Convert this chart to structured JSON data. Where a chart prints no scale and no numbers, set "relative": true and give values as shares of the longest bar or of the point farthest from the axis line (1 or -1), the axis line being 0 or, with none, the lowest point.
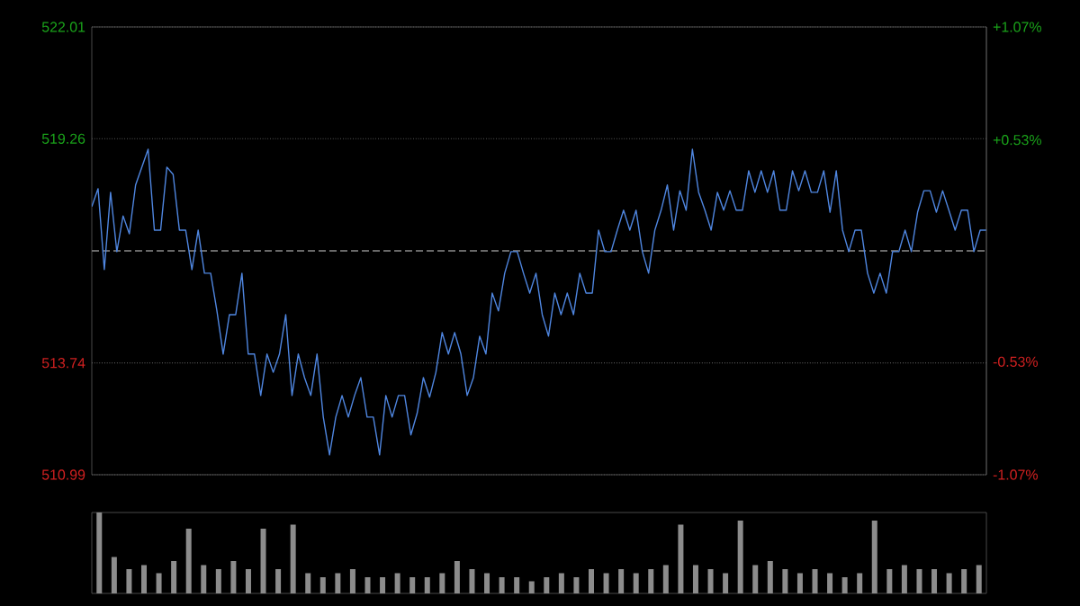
{
  "chart_data": [
    {
      "type": "line",
      "color": "#4f86e0",
      "categories": [
        null,
        null,
        null,
        null,
        null,
        null,
        null,
        null,
        null,
        null,
        null,
        null,
        null,
        null,
        null,
        null,
        null,
        null,
        null,
        null,
        null,
        null,
        null,
        null,
        null,
        null,
        null,
        null,
        null,
        null,
        null,
        null,
        null,
        null,
        null,
        null,
        null,
        null,
        null,
        null,
        null,
        null,
        null,
        null,
        null,
        null,
        null,
        null,
        null,
        null,
        null,
        null,
        null,
        null,
        null,
        null,
        null,
        null,
        null,
        null,
        null,
        null,
        null,
        null,
        null,
        null,
        null,
        null,
        null,
        null,
        null,
        null,
        null,
        null,
        null,
        null,
        null,
        null,
        null,
        null,
        null,
        null,
        null,
        null,
        null,
        null,
        null,
        null,
        null,
        null,
        null,
        null,
        null,
        null,
        null,
        null,
        null,
        null,
        null,
        null,
        null,
        null,
        null,
        null,
        null,
        null,
        null,
        null,
        null,
        null,
        null,
        null,
        null,
        null,
        null,
        null,
        null,
        null,
        null,
        null,
        null,
        null,
        null,
        null,
        null,
        null,
        null,
        null,
        null,
        null,
        null,
        null,
        null,
        null,
        null,
        null,
        null,
        null,
        null,
        null,
        null,
        null,
        null,
        null
      ],
      "values": [
        517.59,
        518.03,
        516.04,
        517.94,
        516.48,
        517.36,
        516.92,
        518.12,
        518.56,
        519.0,
        517.01,
        517.01,
        518.56,
        518.38,
        517.01,
        517.01,
        516.04,
        517.01,
        515.95,
        515.95,
        515.02,
        513.96,
        514.93,
        514.93,
        515.95,
        513.96,
        513.96,
        512.94,
        513.96,
        513.51,
        513.96,
        514.93,
        512.94,
        513.96,
        513.38,
        512.94,
        513.96,
        512.41,
        511.48,
        512.41,
        512.94,
        512.41,
        512.94,
        513.38,
        512.41,
        512.41,
        511.48,
        512.94,
        512.41,
        512.94,
        512.94,
        511.97,
        512.5,
        513.38,
        512.9,
        513.51,
        514.49,
        513.96,
        514.49,
        513.96,
        512.94,
        513.38,
        514.4,
        513.96,
        515.46,
        515.02,
        515.95,
        516.48,
        516.48,
        515.95,
        515.46,
        515.95,
        514.93,
        514.4,
        515.46,
        514.93,
        515.46,
        514.93,
        515.95,
        515.46,
        515.46,
        517.01,
        516.48,
        516.48,
        517.01,
        517.5,
        517.01,
        517.5,
        516.48,
        515.95,
        517.01,
        517.5,
        518.12,
        517.01,
        517.98,
        517.5,
        519.0,
        517.94,
        517.5,
        517.01,
        517.94,
        517.5,
        517.98,
        517.5,
        517.5,
        518.47,
        517.94,
        518.47,
        517.94,
        518.47,
        517.5,
        517.5,
        518.47,
        517.98,
        518.47,
        517.94,
        517.94,
        518.47,
        517.45,
        518.47,
        517.01,
        516.48,
        517.01,
        517.01,
        515.95,
        515.46,
        515.95,
        515.46,
        516.48,
        516.48,
        517.01,
        516.48,
        517.45,
        517.98,
        517.98,
        517.45,
        517.98,
        517.5,
        517.01,
        517.5,
        517.5,
        516.48,
        517.01,
        517.01
      ],
      "ylim": [
        510.99,
        522.01
      ],
      "yticks": [
        510.99,
        513.74,
        519.26,
        522.01
      ],
      "y2lim": [
        -1.07,
        1.07
      ],
      "y2ticks": [
        {
          "value": -1.07,
          "label": "-1.07%"
        },
        {
          "value": -0.53,
          "label": "-0.53%"
        },
        {
          "value": 0.53,
          "label": "+0.53%"
        },
        {
          "value": 1.07,
          "label": "+1.07%"
        }
      ],
      "grid": "y",
      "ref_lines": [
        {
          "axis": "y",
          "value": 516.5,
          "color": "#8a8a8a",
          "line_style": "dashed"
        }
      ]
    },
    {
      "type": "bar",
      "color": "#8c8c8c",
      "relative": true,
      "categories": [
        null,
        null,
        null,
        null,
        null,
        null,
        null,
        null,
        null,
        null,
        null,
        null,
        null,
        null,
        null,
        null,
        null,
        null,
        null,
        null,
        null,
        null,
        null,
        null,
        null,
        null,
        null,
        null,
        null,
        null,
        null,
        null,
        null,
        null,
        null,
        null,
        null,
        null,
        null,
        null,
        null,
        null,
        null,
        null,
        null,
        null,
        null,
        null,
        null,
        null,
        null,
        null,
        null,
        null,
        null,
        null,
        null,
        null,
        null,
        null
      ],
      "values": [
        1.0,
        0.45,
        0.3,
        0.35,
        0.25,
        0.4,
        0.8,
        0.35,
        0.3,
        0.4,
        0.3,
        0.8,
        0.3,
        0.85,
        0.25,
        0.2,
        0.25,
        0.3,
        0.2,
        0.2,
        0.25,
        0.2,
        0.2,
        0.25,
        0.4,
        0.3,
        0.25,
        0.2,
        0.2,
        0.15,
        0.2,
        0.25,
        0.2,
        0.3,
        0.25,
        0.3,
        0.25,
        0.3,
        0.35,
        0.85,
        0.35,
        0.3,
        0.25,
        0.9,
        0.35,
        0.4,
        0.3,
        0.25,
        0.3,
        0.25,
        0.2,
        0.25,
        0.9,
        0.3,
        0.35,
        0.3,
        0.3,
        0.25,
        0.3,
        0.35
      ]
    }
  ]
}
